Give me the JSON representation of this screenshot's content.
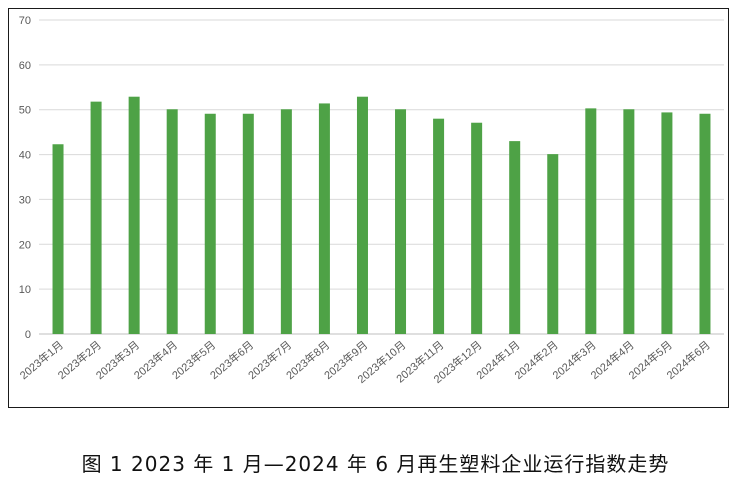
{
  "figure": {
    "caption": "图 1  2023 年 1 月—2024 年 6 月再生塑料企业运行指数走势"
  },
  "colors": {
    "bar": "#4ea246",
    "grid": "#d9d9d9",
    "axis": "#bfbfbf",
    "frame": "#1a1a1a"
  },
  "chart_data": {
    "type": "bar",
    "categories": [
      "2023年1月",
      "2023年2月",
      "2023年3月",
      "2023年4月",
      "2023年5月",
      "2023年6月",
      "2023年7月",
      "2023年8月",
      "2023年9月",
      "2023年10月",
      "2023年11月",
      "2023年12月",
      "2024年1月",
      "2024年2月",
      "2024年3月",
      "2024年4月",
      "2024年5月",
      "2024年6月"
    ],
    "values": [
      42.3,
      51.8,
      52.9,
      50.1,
      49.1,
      49.1,
      50.1,
      51.4,
      52.9,
      50.1,
      48.0,
      47.1,
      43.0,
      40.1,
      50.3,
      50.1,
      49.4,
      49.1
    ],
    "ylim": [
      0,
      70
    ],
    "yticks": [
      0,
      10,
      20,
      30,
      40,
      50,
      60,
      70
    ],
    "grid": true,
    "legend": "none",
    "title": "",
    "xlabel": "",
    "ylabel": ""
  }
}
